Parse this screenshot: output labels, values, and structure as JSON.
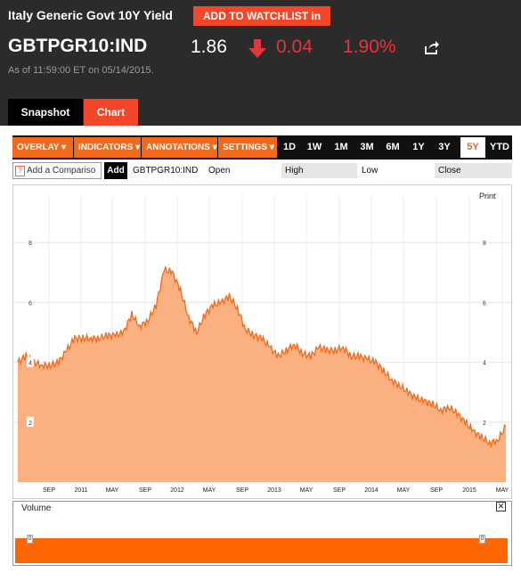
{
  "header": {
    "title": "Italy Generic Govt 10Y Yield",
    "watchlist_label": "ADD TO WATCHLIST in",
    "ticker": "GBTPGR10:IND",
    "price": "1.86",
    "change": "0.04",
    "change_pct": "1.90%",
    "as_of": "As of 11:59:00 ET on 05/14/2015.",
    "arrow_icon": "down-arrow-icon",
    "share_icon": "share-icon",
    "accent_color": "#f4472a",
    "negative_color": "#e8343b"
  },
  "tabs": [
    {
      "label": "Snapshot"
    },
    {
      "label": "Chart"
    }
  ],
  "toolbar": {
    "menus": [
      {
        "label": "OVERLAY ▾"
      },
      {
        "label": "INDICATORS ▾"
      },
      {
        "label": "ANNOTATIONS ▾"
      },
      {
        "label": "SETTINGS ▾"
      }
    ],
    "ranges": [
      {
        "label": "1D"
      },
      {
        "label": "1W"
      },
      {
        "label": "1M"
      },
      {
        "label": "3M"
      },
      {
        "label": "6M"
      },
      {
        "label": "1Y"
      },
      {
        "label": "3Y"
      },
      {
        "label": "5Y"
      },
      {
        "label": "YTD"
      }
    ],
    "active_range": "5Y"
  },
  "compare": {
    "placeholder": "Add a Compariso",
    "add_label": "Add",
    "help_icon": "?",
    "symbol": "GBTPGR10:IND",
    "open_label": "Open",
    "high_label": "High",
    "low_label": "Low",
    "close_label": "Close"
  },
  "print_label": "Print",
  "volume": {
    "label": "Volume",
    "close_icon": "close-icon",
    "tick_label": "0"
  },
  "chart_data": {
    "type": "area",
    "series": [
      {
        "x": [
          "2010-05",
          "2010-06",
          "2010-07",
          "2010-08",
          "2010-09",
          "2010-10",
          "2010-11",
          "2010-12",
          "2011-01",
          "2011-02",
          "2011-03",
          "2011-04",
          "2011-05",
          "2011-06",
          "2011-07",
          "2011-08",
          "2011-09",
          "2011-10",
          "2011-11",
          "2011-12",
          "2012-01",
          "2012-02",
          "2012-03",
          "2012-04",
          "2012-05",
          "2012-06",
          "2012-07",
          "2012-08",
          "2012-09",
          "2012-10",
          "2012-11",
          "2012-12",
          "2013-01",
          "2013-02",
          "2013-03",
          "2013-04",
          "2013-05",
          "2013-06",
          "2013-07",
          "2013-08",
          "2013-09",
          "2013-10",
          "2013-11",
          "2013-12",
          "2014-01",
          "2014-02",
          "2014-03",
          "2014-04",
          "2014-05",
          "2014-06",
          "2014-07",
          "2014-08",
          "2014-09",
          "2014-10",
          "2014-11",
          "2014-12",
          "2015-01",
          "2015-02",
          "2015-03",
          "2015-04",
          "2015-05"
        ],
        "values": [
          4.0,
          4.2,
          4.0,
          3.9,
          3.9,
          4.0,
          4.4,
          4.8,
          4.8,
          4.8,
          4.8,
          4.9,
          4.9,
          5.0,
          5.6,
          5.2,
          5.4,
          5.9,
          7.1,
          7.0,
          6.4,
          5.5,
          5.0,
          5.6,
          5.9,
          6.0,
          6.2,
          5.8,
          5.1,
          4.9,
          4.8,
          4.5,
          4.2,
          4.4,
          4.6,
          4.3,
          4.2,
          4.5,
          4.4,
          4.4,
          4.5,
          4.2,
          4.2,
          4.1,
          4.0,
          3.7,
          3.4,
          3.2,
          3.0,
          2.8,
          2.7,
          2.6,
          2.4,
          2.5,
          2.3,
          2.0,
          1.7,
          1.5,
          1.3,
          1.4,
          1.86
        ]
      }
    ],
    "x_tick_labels": [
      "SEP",
      "2011",
      "MAY",
      "SEP",
      "2012",
      "MAY",
      "SEP",
      "2013",
      "MAY",
      "SEP",
      "2014",
      "MAY",
      "SEP",
      "2015",
      "MAY"
    ],
    "y_ticks": [
      2,
      4,
      6,
      8
    ],
    "ylim": [
      0,
      8.5
    ],
    "fill_color": "#fbb07f",
    "line_color": "#f06a1c",
    "grid": true
  }
}
